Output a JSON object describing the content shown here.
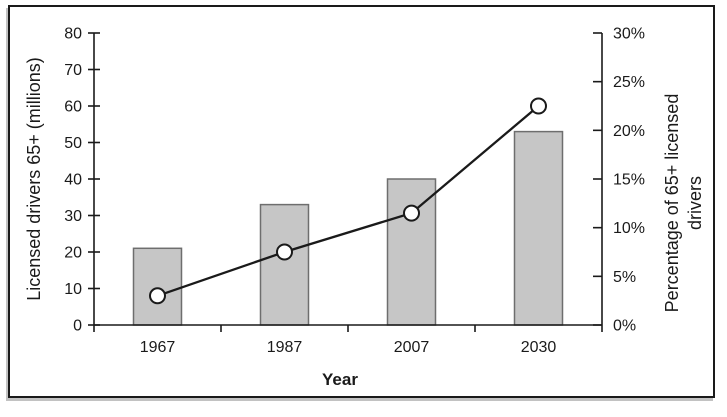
{
  "chart_data": {
    "type": "combo-bar-line",
    "title": "",
    "categories": [
      "1967",
      "1987",
      "2007",
      "2030"
    ],
    "series": [
      {
        "name": "Licensed drivers 65+ (millions)",
        "type": "bar",
        "axis": "left",
        "values": [
          21,
          33,
          40,
          53
        ]
      },
      {
        "name": "Percentage of 65+ licensed drivers",
        "type": "line",
        "axis": "right",
        "values": [
          3,
          7.5,
          11.5,
          22.5
        ]
      }
    ],
    "x_axis": {
      "title": "Year",
      "tick_labels": [
        "1967",
        "1987",
        "2007",
        "2030"
      ]
    },
    "left_axis": {
      "title": "Licensed drivers 65+ (millions)",
      "min": 0,
      "max": 80,
      "tick_values": [
        0,
        10,
        20,
        30,
        40,
        50,
        60,
        70,
        80
      ],
      "tick_labels": [
        "0",
        "10",
        "20",
        "30",
        "40",
        "50",
        "60",
        "70",
        "80"
      ]
    },
    "right_axis": {
      "title": "Percentage of 65+ licensed drivers",
      "title_lines": [
        "Percentage of 65+ licensed",
        "drivers"
      ],
      "min": 0,
      "max": 30,
      "tick_values": [
        0,
        5,
        10,
        15,
        20,
        25,
        30
      ],
      "tick_labels": [
        "0%",
        "5%",
        "10%",
        "15%",
        "20%",
        "25%",
        "30%"
      ]
    },
    "grid": false,
    "legend": "none",
    "colors": {
      "bar_fill": "#c6c6c6",
      "bar_border": "#6e6e6e",
      "line": "#1a1a1a",
      "marker_fill": "#ffffff",
      "marker_border": "#1a1a1a",
      "axis": "#1a1a1a",
      "frame_border": "#1a1a1a",
      "background": "#ffffff"
    }
  }
}
